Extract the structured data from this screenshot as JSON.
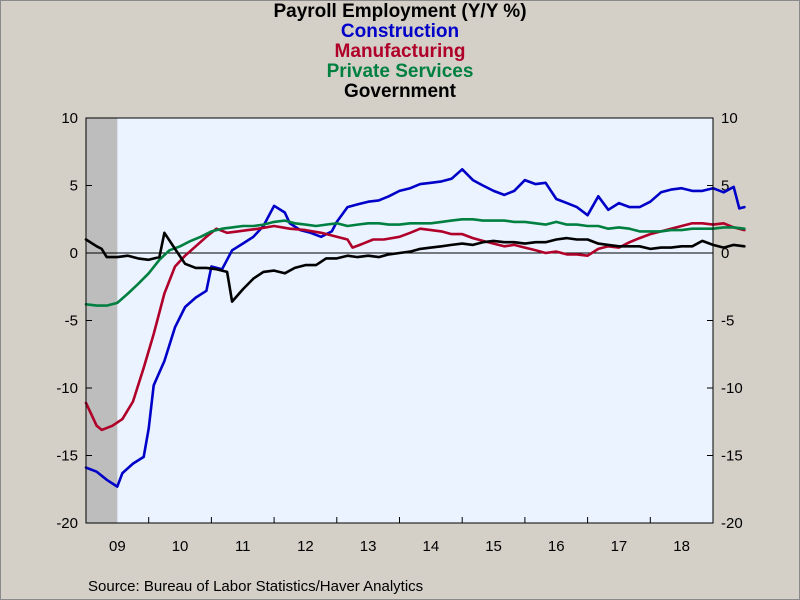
{
  "chart_data": {
    "type": "line",
    "title": "Payroll Employment (Y/Y %)",
    "source": "Source:  Bureau of Labor Statistics/Haver Analytics",
    "x_tick_labels": [
      "09",
      "10",
      "11",
      "12",
      "13",
      "14",
      "15",
      "16",
      "17",
      "18"
    ],
    "x_tick_years": [
      2009,
      2010,
      2011,
      2012,
      2013,
      2014,
      2015,
      2016,
      2017,
      2018
    ],
    "xlim": [
      2009.0,
      2019.0
    ],
    "ylim": [
      -20,
      10
    ],
    "y_ticks": [
      10,
      5,
      0,
      -5,
      -10,
      -15,
      -20
    ],
    "recession_shade": {
      "x0": 2009.0,
      "x1": 2009.5
    },
    "zero_line": true,
    "grid": false,
    "series": [
      {
        "name": "Construction",
        "color": "#0000c8",
        "points": [
          [
            2009.0,
            -15.9
          ],
          [
            2009.17,
            -16.2
          ],
          [
            2009.33,
            -16.8
          ],
          [
            2009.5,
            -17.3
          ],
          [
            2009.58,
            -16.3
          ],
          [
            2009.75,
            -15.6
          ],
          [
            2009.92,
            -15.1
          ],
          [
            2010.0,
            -13.0
          ],
          [
            2010.08,
            -9.8
          ],
          [
            2010.25,
            -8.0
          ],
          [
            2010.42,
            -5.5
          ],
          [
            2010.58,
            -4.0
          ],
          [
            2010.75,
            -3.3
          ],
          [
            2010.92,
            -2.8
          ],
          [
            2011.0,
            -1.0
          ],
          [
            2011.17,
            -1.2
          ],
          [
            2011.33,
            0.2
          ],
          [
            2011.5,
            0.7
          ],
          [
            2011.67,
            1.2
          ],
          [
            2011.83,
            2.0
          ],
          [
            2012.0,
            3.5
          ],
          [
            2012.17,
            3.0
          ],
          [
            2012.25,
            2.2
          ],
          [
            2012.42,
            1.7
          ],
          [
            2012.58,
            1.5
          ],
          [
            2012.75,
            1.2
          ],
          [
            2012.92,
            1.6
          ],
          [
            2013.0,
            2.3
          ],
          [
            2013.17,
            3.4
          ],
          [
            2013.33,
            3.6
          ],
          [
            2013.5,
            3.8
          ],
          [
            2013.67,
            3.9
          ],
          [
            2013.83,
            4.2
          ],
          [
            2014.0,
            4.6
          ],
          [
            2014.17,
            4.8
          ],
          [
            2014.33,
            5.1
          ],
          [
            2014.5,
            5.2
          ],
          [
            2014.67,
            5.3
          ],
          [
            2014.83,
            5.5
          ],
          [
            2015.0,
            6.2
          ],
          [
            2015.17,
            5.4
          ],
          [
            2015.33,
            5.0
          ],
          [
            2015.5,
            4.6
          ],
          [
            2015.67,
            4.3
          ],
          [
            2015.83,
            4.6
          ],
          [
            2016.0,
            5.4
          ],
          [
            2016.17,
            5.1
          ],
          [
            2016.33,
            5.2
          ],
          [
            2016.5,
            4.0
          ],
          [
            2016.67,
            3.7
          ],
          [
            2016.83,
            3.4
          ],
          [
            2017.0,
            2.8
          ],
          [
            2017.17,
            4.2
          ],
          [
            2017.33,
            3.2
          ],
          [
            2017.5,
            3.7
          ],
          [
            2017.67,
            3.4
          ],
          [
            2017.83,
            3.4
          ],
          [
            2018.0,
            3.8
          ],
          [
            2018.17,
            4.5
          ],
          [
            2018.33,
            4.7
          ],
          [
            2018.5,
            4.8
          ],
          [
            2018.67,
            4.6
          ],
          [
            2018.83,
            4.6
          ],
          [
            2019.0,
            4.8
          ],
          [
            2019.17,
            4.5
          ],
          [
            2019.33,
            4.9
          ],
          [
            2019.42,
            3.3
          ],
          [
            2019.5,
            3.4
          ]
        ]
      },
      {
        "name": "Manufacturing",
        "color": "#b0002a",
        "points": [
          [
            2009.0,
            -11.1
          ],
          [
            2009.17,
            -12.8
          ],
          [
            2009.25,
            -13.1
          ],
          [
            2009.42,
            -12.8
          ],
          [
            2009.58,
            -12.3
          ],
          [
            2009.75,
            -11.0
          ],
          [
            2009.92,
            -8.5
          ],
          [
            2010.08,
            -6.0
          ],
          [
            2010.25,
            -3.0
          ],
          [
            2010.42,
            -1.0
          ],
          [
            2010.58,
            -0.2
          ],
          [
            2010.75,
            0.5
          ],
          [
            2010.92,
            1.2
          ],
          [
            2011.08,
            1.8
          ],
          [
            2011.25,
            1.5
          ],
          [
            2011.42,
            1.6
          ],
          [
            2011.58,
            1.7
          ],
          [
            2011.75,
            1.8
          ],
          [
            2012.0,
            2.0
          ],
          [
            2012.25,
            1.8
          ],
          [
            2012.5,
            1.7
          ],
          [
            2012.75,
            1.5
          ],
          [
            2013.0,
            1.2
          ],
          [
            2013.17,
            1.0
          ],
          [
            2013.25,
            0.4
          ],
          [
            2013.42,
            0.7
          ],
          [
            2013.58,
            1.0
          ],
          [
            2013.75,
            1.0
          ],
          [
            2014.0,
            1.2
          ],
          [
            2014.17,
            1.5
          ],
          [
            2014.33,
            1.8
          ],
          [
            2014.5,
            1.7
          ],
          [
            2014.67,
            1.6
          ],
          [
            2014.83,
            1.4
          ],
          [
            2015.0,
            1.4
          ],
          [
            2015.17,
            1.1
          ],
          [
            2015.33,
            0.9
          ],
          [
            2015.5,
            0.7
          ],
          [
            2015.67,
            0.5
          ],
          [
            2015.83,
            0.6
          ],
          [
            2016.0,
            0.4
          ],
          [
            2016.17,
            0.2
          ],
          [
            2016.33,
            0.0
          ],
          [
            2016.5,
            0.1
          ],
          [
            2016.67,
            -0.1
          ],
          [
            2016.83,
            -0.1
          ],
          [
            2017.0,
            -0.2
          ],
          [
            2017.17,
            0.3
          ],
          [
            2017.33,
            0.5
          ],
          [
            2017.5,
            0.4
          ],
          [
            2017.67,
            0.8
          ],
          [
            2017.83,
            1.1
          ],
          [
            2018.0,
            1.4
          ],
          [
            2018.17,
            1.6
          ],
          [
            2018.33,
            1.8
          ],
          [
            2018.5,
            2.0
          ],
          [
            2018.67,
            2.2
          ],
          [
            2018.83,
            2.2
          ],
          [
            2019.0,
            2.1
          ],
          [
            2019.17,
            2.2
          ],
          [
            2019.33,
            1.9
          ],
          [
            2019.5,
            1.7
          ]
        ]
      },
      {
        "name": "Private Services",
        "color": "#008040",
        "points": [
          [
            2009.0,
            -3.8
          ],
          [
            2009.17,
            -3.9
          ],
          [
            2009.33,
            -3.9
          ],
          [
            2009.5,
            -3.7
          ],
          [
            2009.67,
            -3.0
          ],
          [
            2009.83,
            -2.3
          ],
          [
            2010.0,
            -1.5
          ],
          [
            2010.17,
            -0.5
          ],
          [
            2010.33,
            0.2
          ],
          [
            2010.5,
            0.5
          ],
          [
            2010.67,
            0.9
          ],
          [
            2010.83,
            1.2
          ],
          [
            2011.0,
            1.6
          ],
          [
            2011.17,
            1.8
          ],
          [
            2011.33,
            1.9
          ],
          [
            2011.5,
            2.0
          ],
          [
            2011.67,
            2.0
          ],
          [
            2011.83,
            2.1
          ],
          [
            2012.0,
            2.3
          ],
          [
            2012.17,
            2.4
          ],
          [
            2012.33,
            2.2
          ],
          [
            2012.5,
            2.1
          ],
          [
            2012.67,
            2.0
          ],
          [
            2012.83,
            2.1
          ],
          [
            2013.0,
            2.2
          ],
          [
            2013.17,
            2.0
          ],
          [
            2013.33,
            2.1
          ],
          [
            2013.5,
            2.2
          ],
          [
            2013.67,
            2.2
          ],
          [
            2013.83,
            2.1
          ],
          [
            2014.0,
            2.1
          ],
          [
            2014.17,
            2.2
          ],
          [
            2014.33,
            2.2
          ],
          [
            2014.5,
            2.2
          ],
          [
            2014.67,
            2.3
          ],
          [
            2014.83,
            2.4
          ],
          [
            2015.0,
            2.5
          ],
          [
            2015.17,
            2.5
          ],
          [
            2015.33,
            2.4
          ],
          [
            2015.5,
            2.4
          ],
          [
            2015.67,
            2.4
          ],
          [
            2015.83,
            2.3
          ],
          [
            2016.0,
            2.3
          ],
          [
            2016.17,
            2.2
          ],
          [
            2016.33,
            2.1
          ],
          [
            2016.5,
            2.3
          ],
          [
            2016.67,
            2.1
          ],
          [
            2016.83,
            2.1
          ],
          [
            2017.0,
            2.0
          ],
          [
            2017.17,
            2.0
          ],
          [
            2017.33,
            1.8
          ],
          [
            2017.5,
            1.9
          ],
          [
            2017.67,
            1.8
          ],
          [
            2017.83,
            1.6
          ],
          [
            2018.0,
            1.6
          ],
          [
            2018.17,
            1.6
          ],
          [
            2018.33,
            1.7
          ],
          [
            2018.5,
            1.7
          ],
          [
            2018.67,
            1.8
          ],
          [
            2018.83,
            1.8
          ],
          [
            2019.0,
            1.8
          ],
          [
            2019.17,
            1.9
          ],
          [
            2019.33,
            1.9
          ],
          [
            2019.5,
            1.8
          ]
        ]
      },
      {
        "name": "Government",
        "color": "#000000",
        "points": [
          [
            2009.0,
            1.0
          ],
          [
            2009.17,
            0.5
          ],
          [
            2009.25,
            0.3
          ],
          [
            2009.33,
            -0.3
          ],
          [
            2009.5,
            -0.3
          ],
          [
            2009.67,
            -0.2
          ],
          [
            2009.83,
            -0.4
          ],
          [
            2010.0,
            -0.5
          ],
          [
            2010.17,
            -0.3
          ],
          [
            2010.25,
            1.5
          ],
          [
            2010.42,
            0.3
          ],
          [
            2010.58,
            -0.8
          ],
          [
            2010.75,
            -1.1
          ],
          [
            2010.92,
            -1.1
          ],
          [
            2011.08,
            -1.2
          ],
          [
            2011.25,
            -1.4
          ],
          [
            2011.33,
            -3.6
          ],
          [
            2011.5,
            -2.7
          ],
          [
            2011.67,
            -1.9
          ],
          [
            2011.83,
            -1.4
          ],
          [
            2012.0,
            -1.3
          ],
          [
            2012.17,
            -1.5
          ],
          [
            2012.33,
            -1.1
          ],
          [
            2012.5,
            -0.9
          ],
          [
            2012.67,
            -0.9
          ],
          [
            2012.83,
            -0.4
          ],
          [
            2013.0,
            -0.4
          ],
          [
            2013.17,
            -0.2
          ],
          [
            2013.33,
            -0.3
          ],
          [
            2013.5,
            -0.2
          ],
          [
            2013.67,
            -0.3
          ],
          [
            2013.83,
            -0.1
          ],
          [
            2014.0,
            0.0
          ],
          [
            2014.17,
            0.1
          ],
          [
            2014.33,
            0.3
          ],
          [
            2014.5,
            0.4
          ],
          [
            2014.67,
            0.5
          ],
          [
            2014.83,
            0.6
          ],
          [
            2015.0,
            0.7
          ],
          [
            2015.17,
            0.6
          ],
          [
            2015.33,
            0.8
          ],
          [
            2015.5,
            0.9
          ],
          [
            2015.67,
            0.8
          ],
          [
            2015.83,
            0.8
          ],
          [
            2016.0,
            0.7
          ],
          [
            2016.17,
            0.8
          ],
          [
            2016.33,
            0.8
          ],
          [
            2016.5,
            1.0
          ],
          [
            2016.67,
            1.1
          ],
          [
            2016.83,
            1.0
          ],
          [
            2017.0,
            1.0
          ],
          [
            2017.17,
            0.7
          ],
          [
            2017.33,
            0.6
          ],
          [
            2017.5,
            0.5
          ],
          [
            2017.67,
            0.5
          ],
          [
            2017.83,
            0.5
          ],
          [
            2018.0,
            0.3
          ],
          [
            2018.17,
            0.4
          ],
          [
            2018.33,
            0.4
          ],
          [
            2018.5,
            0.5
          ],
          [
            2018.67,
            0.5
          ],
          [
            2018.83,
            0.9
          ],
          [
            2019.0,
            0.6
          ],
          [
            2019.17,
            0.4
          ],
          [
            2019.33,
            0.6
          ],
          [
            2019.5,
            0.5
          ]
        ]
      }
    ]
  }
}
